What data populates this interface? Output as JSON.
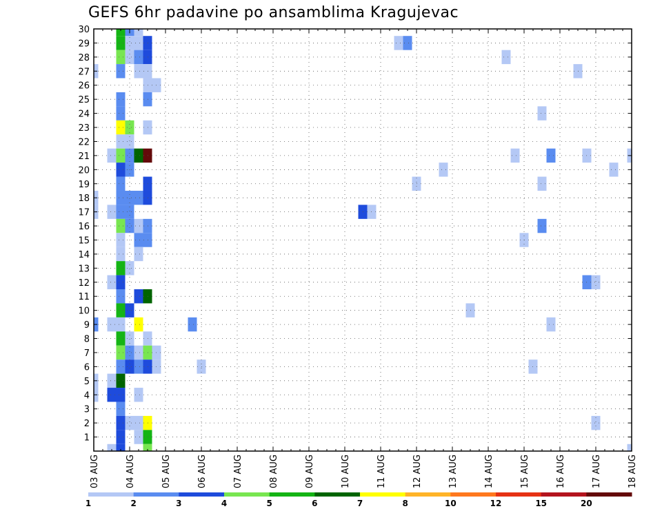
{
  "chart_data": {
    "type": "heatmap",
    "title": "GEFS 6hr padavine po ansamblima Kragujevac",
    "x_labels": [
      "03 AUG",
      "04 AUG",
      "05 AUG",
      "06 AUG",
      "07 AUG",
      "08 AUG",
      "09 AUG",
      "10 AUG",
      "11 AUG",
      "12 AUG",
      "13 AUG",
      "14 AUG",
      "15 AUG",
      "16 AUG",
      "17 AUG",
      "18 AUG"
    ],
    "y_labels": [
      "1",
      "2",
      "3",
      "4",
      "5",
      "6",
      "7",
      "8",
      "9",
      "10",
      "11",
      "12",
      "13",
      "14",
      "15",
      "16",
      "17",
      "18",
      "19",
      "20",
      "21",
      "22",
      "23",
      "24",
      "25",
      "26",
      "27",
      "28",
      "29",
      "30"
    ],
    "xlim": [
      0,
      60
    ],
    "ylim": [
      0,
      30
    ],
    "x_step": "6hr",
    "grid": true,
    "legend": {
      "position": "bottom",
      "boundaries": [
        "1",
        "2",
        "3",
        "4",
        "5",
        "6",
        "7",
        "8",
        "10",
        "12",
        "15",
        "20"
      ],
      "colors": [
        "#b4c8f5",
        "#5a8cf0",
        "#1e4bdc",
        "#78e650",
        "#14b414",
        "#006400",
        "#ffff00",
        "#ffb428",
        "#ff781e",
        "#e63214",
        "#b4141e",
        "#640a0a"
      ]
    },
    "cells": [
      {
        "t": 0,
        "m": 27,
        "c": 0
      },
      {
        "t": 0,
        "m": 18,
        "c": 0
      },
      {
        "t": 0,
        "m": 17,
        "c": 0
      },
      {
        "t": 0,
        "m": 9,
        "c": 1
      },
      {
        "t": 0,
        "m": 5,
        "c": 0
      },
      {
        "t": 0,
        "m": 4,
        "c": 0
      },
      {
        "t": 2,
        "m": 21,
        "c": 0
      },
      {
        "t": 2,
        "m": 17,
        "c": 0
      },
      {
        "t": 2,
        "m": 12,
        "c": 0
      },
      {
        "t": 2,
        "m": 9,
        "c": 0
      },
      {
        "t": 2,
        "m": 5,
        "c": 0
      },
      {
        "t": 2,
        "m": 4,
        "c": 2
      },
      {
        "t": 2,
        "m": 0,
        "c": 0
      },
      {
        "t": 3,
        "m": 30,
        "c": 4
      },
      {
        "t": 3,
        "m": 29,
        "c": 4
      },
      {
        "t": 3,
        "m": 28,
        "c": 3
      },
      {
        "t": 3,
        "m": 27,
        "c": 1
      },
      {
        "t": 3,
        "m": 25,
        "c": 1
      },
      {
        "t": 3,
        "m": 24,
        "c": 1
      },
      {
        "t": 3,
        "m": 23,
        "c": 6
      },
      {
        "t": 3,
        "m": 22,
        "c": 0
      },
      {
        "t": 3,
        "m": 21,
        "c": 3
      },
      {
        "t": 3,
        "m": 20,
        "c": 2
      },
      {
        "t": 3,
        "m": 19,
        "c": 1
      },
      {
        "t": 3,
        "m": 18,
        "c": 1
      },
      {
        "t": 3,
        "m": 17,
        "c": 1
      },
      {
        "t": 3,
        "m": 16,
        "c": 3
      },
      {
        "t": 3,
        "m": 15,
        "c": 0
      },
      {
        "t": 3,
        "m": 14,
        "c": 0
      },
      {
        "t": 3,
        "m": 13,
        "c": 4
      },
      {
        "t": 3,
        "m": 12,
        "c": 2
      },
      {
        "t": 3,
        "m": 11,
        "c": 1
      },
      {
        "t": 3,
        "m": 10,
        "c": 4
      },
      {
        "t": 3,
        "m": 9,
        "c": 0
      },
      {
        "t": 3,
        "m": 8,
        "c": 4
      },
      {
        "t": 3,
        "m": 7,
        "c": 3
      },
      {
        "t": 3,
        "m": 6,
        "c": 1
      },
      {
        "t": 3,
        "m": 5,
        "c": 5
      },
      {
        "t": 3,
        "m": 4,
        "c": 2
      },
      {
        "t": 3,
        "m": 3,
        "c": 1
      },
      {
        "t": 3,
        "m": 2,
        "c": 2
      },
      {
        "t": 3,
        "m": 1,
        "c": 2
      },
      {
        "t": 3,
        "m": 0,
        "c": 2
      },
      {
        "t": 4,
        "m": 30,
        "c": 1
      },
      {
        "t": 4,
        "m": 29,
        "c": 0
      },
      {
        "t": 4,
        "m": 28,
        "c": 0
      },
      {
        "t": 4,
        "m": 23,
        "c": 3
      },
      {
        "t": 4,
        "m": 22,
        "c": 0
      },
      {
        "t": 4,
        "m": 21,
        "c": 1
      },
      {
        "t": 4,
        "m": 20,
        "c": 1
      },
      {
        "t": 4,
        "m": 18,
        "c": 1
      },
      {
        "t": 4,
        "m": 17,
        "c": 1
      },
      {
        "t": 4,
        "m": 16,
        "c": 1
      },
      {
        "t": 4,
        "m": 13,
        "c": 0
      },
      {
        "t": 4,
        "m": 10,
        "c": 2
      },
      {
        "t": 4,
        "m": 8,
        "c": 0
      },
      {
        "t": 4,
        "m": 7,
        "c": 1
      },
      {
        "t": 4,
        "m": 6,
        "c": 2
      },
      {
        "t": 4,
        "m": 2,
        "c": 0
      },
      {
        "t": 5,
        "m": 30,
        "c": 0
      },
      {
        "t": 5,
        "m": 29,
        "c": 0
      },
      {
        "t": 5,
        "m": 28,
        "c": 1
      },
      {
        "t": 5,
        "m": 27,
        "c": 0
      },
      {
        "t": 5,
        "m": 21,
        "c": 5
      },
      {
        "t": 5,
        "m": 18,
        "c": 1
      },
      {
        "t": 5,
        "m": 16,
        "c": 0
      },
      {
        "t": 5,
        "m": 15,
        "c": 1
      },
      {
        "t": 5,
        "m": 14,
        "c": 0
      },
      {
        "t": 5,
        "m": 11,
        "c": 2
      },
      {
        "t": 5,
        "m": 9,
        "c": 6
      },
      {
        "t": 5,
        "m": 7,
        "c": 0
      },
      {
        "t": 5,
        "m": 6,
        "c": 1
      },
      {
        "t": 5,
        "m": 4,
        "c": 0
      },
      {
        "t": 5,
        "m": 2,
        "c": 0
      },
      {
        "t": 5,
        "m": 1,
        "c": 0
      },
      {
        "t": 6,
        "m": 29,
        "c": 2
      },
      {
        "t": 6,
        "m": 28,
        "c": 2
      },
      {
        "t": 6,
        "m": 27,
        "c": 0
      },
      {
        "t": 6,
        "m": 26,
        "c": 0
      },
      {
        "t": 6,
        "m": 25,
        "c": 1
      },
      {
        "t": 6,
        "m": 23,
        "c": 0
      },
      {
        "t": 6,
        "m": 21,
        "c": 11
      },
      {
        "t": 6,
        "m": 19,
        "c": 2
      },
      {
        "t": 6,
        "m": 18,
        "c": 2
      },
      {
        "t": 6,
        "m": 16,
        "c": 1
      },
      {
        "t": 6,
        "m": 15,
        "c": 1
      },
      {
        "t": 6,
        "m": 11,
        "c": 5
      },
      {
        "t": 6,
        "m": 8,
        "c": 0
      },
      {
        "t": 6,
        "m": 7,
        "c": 3
      },
      {
        "t": 6,
        "m": 6,
        "c": 2
      },
      {
        "t": 6,
        "m": 2,
        "c": 6
      },
      {
        "t": 6,
        "m": 1,
        "c": 4
      },
      {
        "t": 6,
        "m": 0,
        "c": 3
      },
      {
        "t": 7,
        "m": 26,
        "c": 0
      },
      {
        "t": 7,
        "m": 7,
        "c": 0
      },
      {
        "t": 7,
        "m": 6,
        "c": 0
      },
      {
        "t": 11,
        "m": 9,
        "c": 1
      },
      {
        "t": 12,
        "m": 6,
        "c": 0
      },
      {
        "t": 30,
        "m": 17,
        "c": 2
      },
      {
        "t": 31,
        "m": 17,
        "c": 0
      },
      {
        "t": 34,
        "m": 29,
        "c": 0
      },
      {
        "t": 35,
        "m": 29,
        "c": 1
      },
      {
        "t": 36,
        "m": 19,
        "c": 0
      },
      {
        "t": 39,
        "m": 20,
        "c": 0
      },
      {
        "t": 42,
        "m": 10,
        "c": 0
      },
      {
        "t": 46,
        "m": 28,
        "c": 0
      },
      {
        "t": 47,
        "m": 21,
        "c": 0
      },
      {
        "t": 48,
        "m": 15,
        "c": 0
      },
      {
        "t": 49,
        "m": 6,
        "c": 0
      },
      {
        "t": 50,
        "m": 24,
        "c": 0
      },
      {
        "t": 50,
        "m": 19,
        "c": 0
      },
      {
        "t": 50,
        "m": 16,
        "c": 1
      },
      {
        "t": 51,
        "m": 21,
        "c": 1
      },
      {
        "t": 51,
        "m": 9,
        "c": 0
      },
      {
        "t": 54,
        "m": 27,
        "c": 0
      },
      {
        "t": 55,
        "m": 21,
        "c": 0
      },
      {
        "t": 55,
        "m": 12,
        "c": 1
      },
      {
        "t": 56,
        "m": 12,
        "c": 0
      },
      {
        "t": 56,
        "m": 2,
        "c": 0
      },
      {
        "t": 58,
        "m": 20,
        "c": 0
      },
      {
        "t": 60,
        "m": 21,
        "c": 0
      },
      {
        "t": 60,
        "m": 0,
        "c": 0
      }
    ]
  }
}
